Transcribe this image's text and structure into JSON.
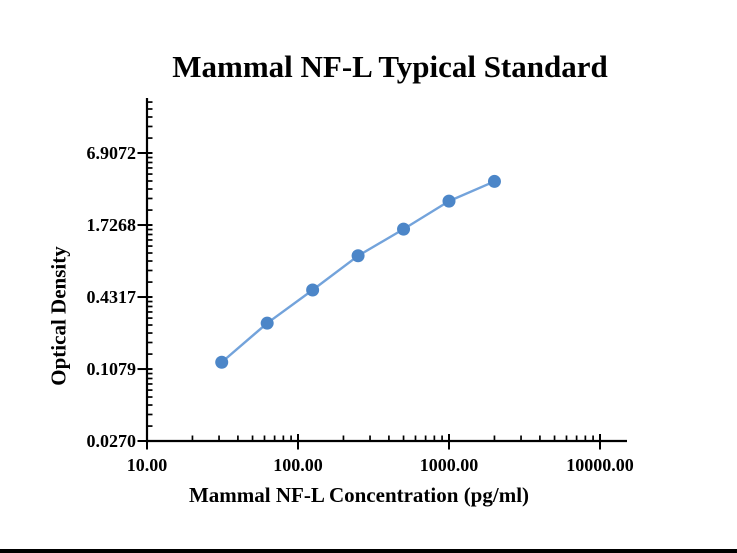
{
  "chart_data": {
    "type": "line",
    "title": "Mammal NF-L Typical Standard",
    "xlabel": "Mammal NF-L Concentration (pg/ml)",
    "ylabel": "Optical Density",
    "x_scale": "log",
    "y_scale": "log",
    "grid": false,
    "legend": false,
    "x_range": [
      10,
      15100
    ],
    "y_range": [
      0.027,
      20
    ],
    "x_ticks": [
      {
        "value": 10,
        "label": "10.00"
      },
      {
        "value": 100,
        "label": "100.00"
      },
      {
        "value": 1000,
        "label": "1000.00"
      },
      {
        "value": 10000,
        "label": "10000.00"
      }
    ],
    "y_ticks": [
      {
        "value": 0.027,
        "label": "0.0270"
      },
      {
        "value": 0.1079,
        "label": "0.1079"
      },
      {
        "value": 0.4317,
        "label": "0.4317"
      },
      {
        "value": 1.7268,
        "label": "1.7268"
      },
      {
        "value": 6.9072,
        "label": "6.9072"
      }
    ],
    "series": [
      {
        "name": "Typical Standard",
        "x": [
          31.25,
          62.5,
          125,
          250,
          500,
          1000,
          2000
        ],
        "y": [
          0.123,
          0.261,
          0.494,
          0.955,
          1.596,
          2.736,
          3.996
        ],
        "marker": "circle",
        "line_color": "#73A3DB",
        "marker_color": "#4C86C8"
      }
    ],
    "axis_color": "#000000",
    "background": "#FFFFFF"
  },
  "decorations": {
    "bottom_edge_bar_color": "#000000"
  }
}
